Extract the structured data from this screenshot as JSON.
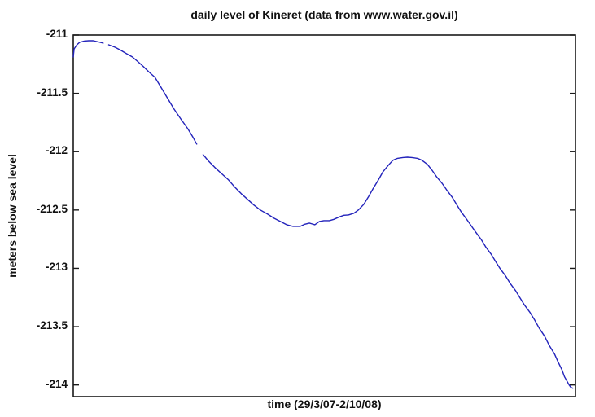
{
  "figure": {
    "title": "daily level of Kineret (data from www.water.gov.il)",
    "xlabel": "time (29/3/07-2/10/08)",
    "ylabel": "meters below sea level"
  },
  "axes": {
    "yticks": [
      -211,
      -211.5,
      -212,
      -212.5,
      -213,
      -213.5,
      -214
    ],
    "xticks": [],
    "axis_color": "#1a1a1a"
  },
  "chart_data": {
    "type": "line",
    "title": "daily level of Kineret (data from www.water.gov.il)",
    "xlabel": "time (29/3/07-2/10/08)",
    "ylabel": "meters below sea level",
    "x_unit": "days since 29/3/2007 (span 29/3/07 - 2/10/08)",
    "xlim": [
      0,
      553
    ],
    "ylim": [
      -214.1,
      -211
    ],
    "grid": false,
    "legend": "none",
    "line_color": "#2323bb",
    "note": "single blue line of daily lake levels; two short data gaps",
    "segments": [
      {
        "points": [
          [
            0,
            -211.188
          ],
          [
            1,
            -211.119
          ],
          [
            4,
            -211.084
          ],
          [
            7,
            -211.063
          ],
          [
            12,
            -211.052
          ],
          [
            17,
            -211.049
          ],
          [
            22,
            -211.049
          ],
          [
            28,
            -211.059
          ],
          [
            33,
            -211.07
          ]
        ]
      },
      {
        "points": [
          [
            39,
            -211.084
          ],
          [
            46,
            -211.105
          ],
          [
            52,
            -211.129
          ],
          [
            58,
            -211.157
          ],
          [
            65,
            -211.188
          ],
          [
            71,
            -211.227
          ],
          [
            77,
            -211.269
          ],
          [
            83,
            -211.314
          ],
          [
            90,
            -211.363
          ],
          [
            96,
            -211.44
          ],
          [
            104,
            -211.544
          ],
          [
            111,
            -211.635
          ],
          [
            119,
            -211.726
          ],
          [
            126,
            -211.802
          ],
          [
            132,
            -211.879
          ],
          [
            136,
            -211.935
          ]
        ]
      },
      {
        "points": [
          [
            143,
            -212.025
          ],
          [
            149,
            -212.081
          ],
          [
            156,
            -212.137
          ],
          [
            163,
            -212.186
          ],
          [
            171,
            -212.242
          ],
          [
            178,
            -212.305
          ],
          [
            185,
            -212.36
          ],
          [
            192,
            -212.409
          ],
          [
            199,
            -212.458
          ],
          [
            206,
            -212.5
          ],
          [
            214,
            -212.535
          ],
          [
            221,
            -212.57
          ],
          [
            228,
            -212.598
          ],
          [
            235,
            -212.626
          ],
          [
            242,
            -212.64
          ],
          [
            250,
            -212.64
          ],
          [
            255,
            -212.622
          ],
          [
            260,
            -212.612
          ],
          [
            266,
            -212.626
          ],
          [
            271,
            -212.598
          ],
          [
            276,
            -212.591
          ],
          [
            282,
            -212.591
          ],
          [
            287,
            -212.58
          ],
          [
            293,
            -212.559
          ],
          [
            298,
            -212.545
          ],
          [
            303,
            -212.542
          ],
          [
            309,
            -212.528
          ],
          [
            314,
            -212.5
          ],
          [
            320,
            -212.451
          ],
          [
            325,
            -212.388
          ],
          [
            330,
            -212.319
          ],
          [
            336,
            -212.242
          ],
          [
            341,
            -212.172
          ],
          [
            347,
            -212.116
          ],
          [
            352,
            -212.074
          ],
          [
            357,
            -212.057
          ],
          [
            363,
            -212.05
          ],
          [
            368,
            -212.047
          ],
          [
            373,
            -212.05
          ],
          [
            379,
            -212.057
          ],
          [
            384,
            -212.074
          ],
          [
            390,
            -212.109
          ],
          [
            395,
            -212.158
          ],
          [
            400,
            -212.214
          ],
          [
            406,
            -212.27
          ],
          [
            411,
            -212.326
          ],
          [
            417,
            -212.388
          ],
          [
            422,
            -212.451
          ],
          [
            427,
            -212.514
          ],
          [
            433,
            -212.577
          ],
          [
            438,
            -212.633
          ],
          [
            443,
            -212.688
          ],
          [
            449,
            -212.751
          ],
          [
            454,
            -212.814
          ],
          [
            460,
            -212.877
          ],
          [
            465,
            -212.94
          ],
          [
            470,
            -213.002
          ],
          [
            476,
            -213.065
          ],
          [
            481,
            -213.128
          ],
          [
            487,
            -213.191
          ],
          [
            492,
            -213.254
          ],
          [
            497,
            -213.316
          ],
          [
            503,
            -213.379
          ],
          [
            508,
            -213.442
          ],
          [
            513,
            -213.512
          ],
          [
            519,
            -213.582
          ],
          [
            524,
            -213.658
          ],
          [
            530,
            -213.735
          ],
          [
            534,
            -213.805
          ],
          [
            538,
            -213.868
          ],
          [
            541,
            -213.93
          ],
          [
            544,
            -213.972
          ],
          [
            546,
            -214.0
          ],
          [
            548,
            -214.021
          ],
          [
            550,
            -214.028
          ]
        ]
      }
    ]
  }
}
